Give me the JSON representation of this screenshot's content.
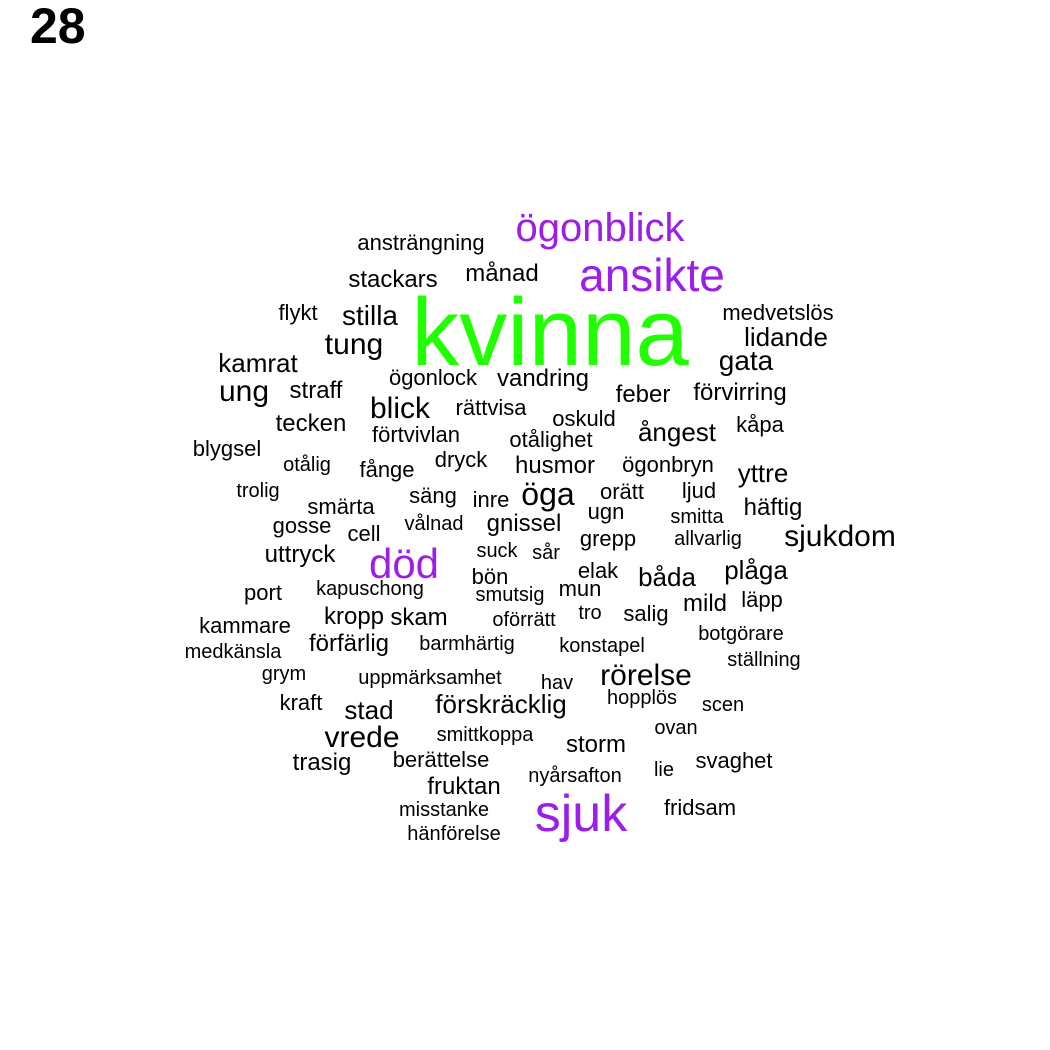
{
  "page_number": "28",
  "colors": {
    "top": "#22ff00",
    "high": "#9b1fe8",
    "normal": "#000000"
  },
  "words": [
    {
      "text": "kvinna",
      "tier": "top"
    },
    {
      "text": "ögonblick",
      "tier": "high"
    },
    {
      "text": "ansikte",
      "tier": "high"
    },
    {
      "text": "död",
      "tier": "high"
    },
    {
      "text": "sjuk",
      "tier": "high"
    },
    {
      "text": "ansträngning",
      "tier": "normal"
    },
    {
      "text": "stackars",
      "tier": "normal"
    },
    {
      "text": "månad",
      "tier": "normal"
    },
    {
      "text": "flykt",
      "tier": "normal"
    },
    {
      "text": "stilla",
      "tier": "normal"
    },
    {
      "text": "medvetslös",
      "tier": "normal"
    },
    {
      "text": "lidande",
      "tier": "normal"
    },
    {
      "text": "tung",
      "tier": "normal"
    },
    {
      "text": "gata",
      "tier": "normal"
    },
    {
      "text": "kamrat",
      "tier": "normal"
    },
    {
      "text": "ögonlock",
      "tier": "normal"
    },
    {
      "text": "vandring",
      "tier": "normal"
    },
    {
      "text": "ung",
      "tier": "normal"
    },
    {
      "text": "straff",
      "tier": "normal"
    },
    {
      "text": "feber",
      "tier": "normal"
    },
    {
      "text": "förvirring",
      "tier": "normal"
    },
    {
      "text": "blick",
      "tier": "normal"
    },
    {
      "text": "rättvisa",
      "tier": "normal"
    },
    {
      "text": "oskuld",
      "tier": "normal"
    },
    {
      "text": "tecken",
      "tier": "normal"
    },
    {
      "text": "förtvivlan",
      "tier": "normal"
    },
    {
      "text": "ångest",
      "tier": "normal"
    },
    {
      "text": "kåpa",
      "tier": "normal"
    },
    {
      "text": "otålighet",
      "tier": "normal"
    },
    {
      "text": "blygsel",
      "tier": "normal"
    },
    {
      "text": "dryck",
      "tier": "normal"
    },
    {
      "text": "otålig",
      "tier": "normal"
    },
    {
      "text": "fånge",
      "tier": "normal"
    },
    {
      "text": "husmor",
      "tier": "normal"
    },
    {
      "text": "ögonbryn",
      "tier": "normal"
    },
    {
      "text": "yttre",
      "tier": "normal"
    },
    {
      "text": "trolig",
      "tier": "normal"
    },
    {
      "text": "säng",
      "tier": "normal"
    },
    {
      "text": "inre",
      "tier": "normal"
    },
    {
      "text": "öga",
      "tier": "normal"
    },
    {
      "text": "orätt",
      "tier": "normal"
    },
    {
      "text": "ljud",
      "tier": "normal"
    },
    {
      "text": "smärta",
      "tier": "normal"
    },
    {
      "text": "häftig",
      "tier": "normal"
    },
    {
      "text": "gosse",
      "tier": "normal"
    },
    {
      "text": "vålnad",
      "tier": "normal"
    },
    {
      "text": "gnissel",
      "tier": "normal"
    },
    {
      "text": "ugn",
      "tier": "normal"
    },
    {
      "text": "smitta",
      "tier": "normal"
    },
    {
      "text": "cell",
      "tier": "normal"
    },
    {
      "text": "grepp",
      "tier": "normal"
    },
    {
      "text": "sjukdom",
      "tier": "normal"
    },
    {
      "text": "uttryck",
      "tier": "normal"
    },
    {
      "text": "suck",
      "tier": "normal"
    },
    {
      "text": "sår",
      "tier": "normal"
    },
    {
      "text": "allvarlig",
      "tier": "normal"
    },
    {
      "text": "bön",
      "tier": "normal"
    },
    {
      "text": "elak",
      "tier": "normal"
    },
    {
      "text": "båda",
      "tier": "normal"
    },
    {
      "text": "plåga",
      "tier": "normal"
    },
    {
      "text": "port",
      "tier": "normal"
    },
    {
      "text": "kapuschong",
      "tier": "normal"
    },
    {
      "text": "smutsig",
      "tier": "normal"
    },
    {
      "text": "mun",
      "tier": "normal"
    },
    {
      "text": "mild",
      "tier": "normal"
    },
    {
      "text": "läpp",
      "tier": "normal"
    },
    {
      "text": "kammare",
      "tier": "normal"
    },
    {
      "text": "kropp",
      "tier": "normal"
    },
    {
      "text": "skam",
      "tier": "normal"
    },
    {
      "text": "oförrätt",
      "tier": "normal"
    },
    {
      "text": "tro",
      "tier": "normal"
    },
    {
      "text": "salig",
      "tier": "normal"
    },
    {
      "text": "botgörare",
      "tier": "normal"
    },
    {
      "text": "förfärlig",
      "tier": "normal"
    },
    {
      "text": "barmhärtig",
      "tier": "normal"
    },
    {
      "text": "konstapel",
      "tier": "normal"
    },
    {
      "text": "medkänsla",
      "tier": "normal"
    },
    {
      "text": "ställning",
      "tier": "normal"
    },
    {
      "text": "grym",
      "tier": "normal"
    },
    {
      "text": "uppmärksamhet",
      "tier": "normal"
    },
    {
      "text": "hav",
      "tier": "normal"
    },
    {
      "text": "rörelse",
      "tier": "normal"
    },
    {
      "text": "kraft",
      "tier": "normal"
    },
    {
      "text": "stad",
      "tier": "normal"
    },
    {
      "text": "förskräcklig",
      "tier": "normal"
    },
    {
      "text": "hopplös",
      "tier": "normal"
    },
    {
      "text": "scen",
      "tier": "normal"
    },
    {
      "text": "smittkoppa",
      "tier": "normal"
    },
    {
      "text": "ovan",
      "tier": "normal"
    },
    {
      "text": "vrede",
      "tier": "normal"
    },
    {
      "text": "storm",
      "tier": "normal"
    },
    {
      "text": "trasig",
      "tier": "normal"
    },
    {
      "text": "berättelse",
      "tier": "normal"
    },
    {
      "text": "lie",
      "tier": "normal"
    },
    {
      "text": "svaghet",
      "tier": "normal"
    },
    {
      "text": "nyårsafton",
      "tier": "normal"
    },
    {
      "text": "fruktan",
      "tier": "normal"
    },
    {
      "text": "fridsam",
      "tier": "normal"
    },
    {
      "text": "misstanke",
      "tier": "normal"
    },
    {
      "text": "hänförelse",
      "tier": "normal"
    }
  ]
}
